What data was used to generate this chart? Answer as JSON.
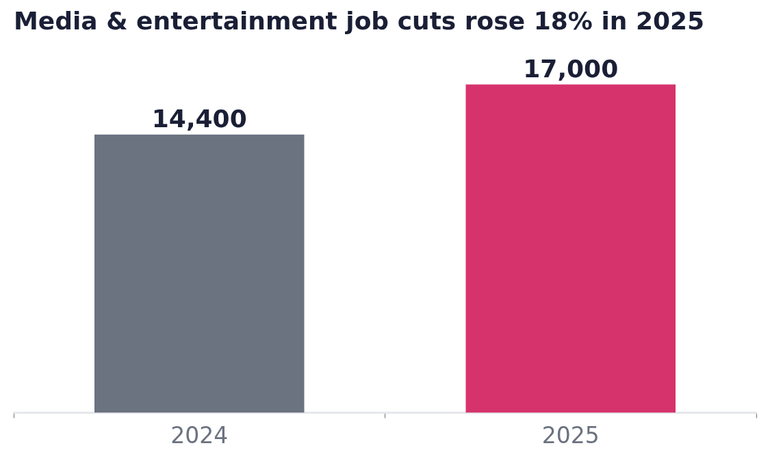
{
  "chart_data": {
    "type": "bar",
    "title": "Media & entertainment job cuts rose 18% in 2025",
    "categories": [
      "2024",
      "2025"
    ],
    "values": [
      14400,
      17000
    ],
    "colors": [
      "#6b7280",
      "#d6336c"
    ],
    "value_labels": [
      "14,400",
      "17,000"
    ],
    "tick_labels": "x",
    "grid": false,
    "legend": false
  }
}
